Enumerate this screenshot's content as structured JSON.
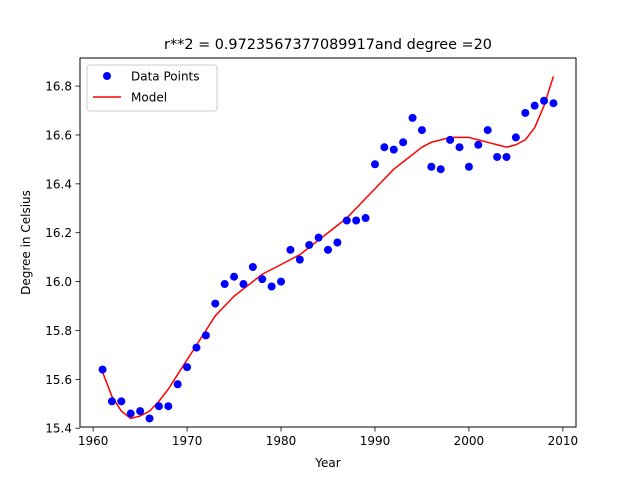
{
  "chart_data": {
    "type": "scatter",
    "title": "r**2 = 0.9723567377089917and degree =20",
    "xlabel": "Year",
    "ylabel": "Degree in Celsius",
    "xlim": [
      1958.6,
      2011.4
    ],
    "ylim": [
      15.405,
      16.915
    ],
    "x_ticks": [
      1960,
      1970,
      1980,
      1990,
      2000,
      2010
    ],
    "y_ticks": [
      15.4,
      15.6,
      15.8,
      16.0,
      16.2,
      16.4,
      16.6,
      16.8
    ],
    "grid": false,
    "legend_position": "top-left",
    "series": [
      {
        "name": "Data Points",
        "kind": "scatter",
        "color": "#0000ff",
        "x": [
          1961,
          1962,
          1963,
          1964,
          1965,
          1966,
          1967,
          1968,
          1969,
          1970,
          1971,
          1972,
          1973,
          1974,
          1975,
          1976,
          1977,
          1978,
          1979,
          1980,
          1981,
          1982,
          1983,
          1984,
          1985,
          1986,
          1987,
          1988,
          1989,
          1990,
          1991,
          1992,
          1993,
          1994,
          1995,
          1996,
          1997,
          1998,
          1999,
          2000,
          2001,
          2002,
          2003,
          2004,
          2005,
          2006,
          2007,
          2008,
          2009
        ],
        "y": [
          15.64,
          15.51,
          15.51,
          15.46,
          15.47,
          15.44,
          15.49,
          15.49,
          15.58,
          15.65,
          15.73,
          15.78,
          15.91,
          15.99,
          16.02,
          15.99,
          16.06,
          16.01,
          15.98,
          16.0,
          16.13,
          16.09,
          16.15,
          16.18,
          16.13,
          16.16,
          16.25,
          16.25,
          16.26,
          16.48,
          16.55,
          16.54,
          16.57,
          16.67,
          16.62,
          16.47,
          16.46,
          16.58,
          16.55,
          16.47,
          16.56,
          16.62,
          16.51,
          16.51,
          16.59,
          16.69,
          16.72,
          16.74,
          16.73
        ]
      },
      {
        "name": "Model",
        "kind": "line",
        "color": "#ff0000",
        "x": [
          1961,
          1962,
          1963,
          1964,
          1965,
          1966,
          1967,
          1968,
          1969,
          1970,
          1971,
          1972,
          1973,
          1974,
          1975,
          1976,
          1977,
          1978,
          1979,
          1980,
          1981,
          1982,
          1983,
          1984,
          1985,
          1986,
          1987,
          1988,
          1989,
          1990,
          1991,
          1992,
          1993,
          1994,
          1995,
          1996,
          1997,
          1998,
          1999,
          2000,
          2001,
          2002,
          2003,
          2004,
          2005,
          2006,
          2007,
          2008,
          2009
        ],
        "y": [
          15.63,
          15.53,
          15.47,
          15.44,
          15.45,
          15.47,
          15.51,
          15.56,
          15.62,
          15.68,
          15.74,
          15.8,
          15.86,
          15.9,
          15.94,
          15.97,
          16.0,
          16.03,
          16.05,
          16.07,
          16.09,
          16.11,
          16.14,
          16.17,
          16.2,
          16.23,
          16.26,
          16.3,
          16.34,
          16.38,
          16.42,
          16.46,
          16.49,
          16.52,
          16.55,
          16.57,
          16.58,
          16.59,
          16.59,
          16.59,
          16.58,
          16.57,
          16.56,
          16.55,
          16.56,
          16.58,
          16.63,
          16.72,
          16.84
        ]
      }
    ]
  }
}
